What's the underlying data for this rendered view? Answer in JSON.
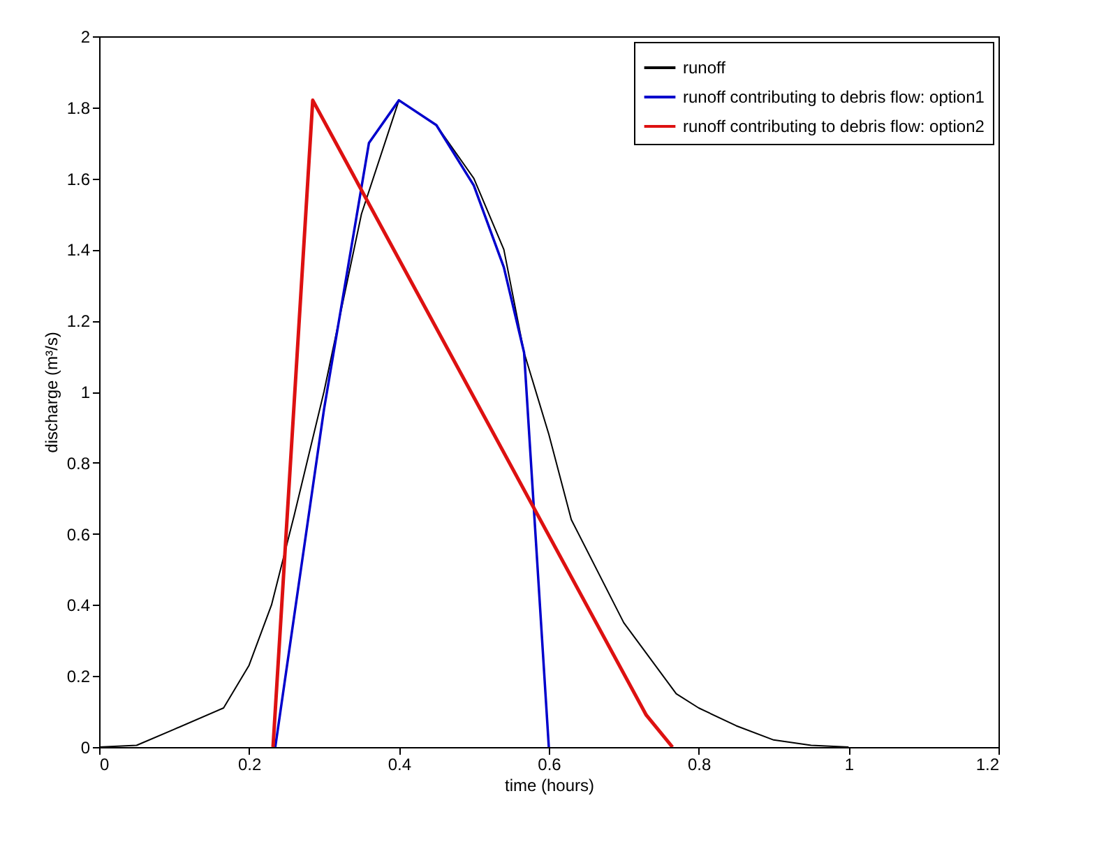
{
  "chart_data": {
    "type": "line",
    "xlabel": "time (hours)",
    "ylabel": "discharge (m³/s)",
    "xlim": [
      0,
      1.2
    ],
    "xticks": [
      0,
      0.2,
      0.4,
      0.6,
      0.8,
      1,
      1.2
    ],
    "ylim": [
      0,
      2
    ],
    "yticks": [
      0,
      0.2,
      0.4,
      0.6,
      0.8,
      1,
      1.2,
      1.4,
      1.6,
      1.8,
      2
    ],
    "grid": false,
    "legend": "top right",
    "marker": "none",
    "line_style": "solid",
    "series": [
      {
        "name": "runoff",
        "color": "#000000",
        "x": [
          0,
          0.05,
          0.1,
          0.166,
          0.2,
          0.23,
          0.26,
          0.3,
          0.35,
          0.4,
          0.45,
          0.5,
          0.54,
          0.567,
          0.6,
          0.63,
          0.7,
          0.77,
          0.8,
          0.85,
          0.9,
          0.95,
          1.0
        ],
        "values": [
          0,
          0.005,
          0.05,
          0.11,
          0.23,
          0.4,
          0.65,
          1.0,
          1.5,
          1.82,
          1.75,
          1.6,
          1.4,
          1.11,
          0.88,
          0.64,
          0.35,
          0.15,
          0.11,
          0.06,
          0.02,
          0.005,
          0
        ]
      },
      {
        "name": "runoff contributing to debris flow: option1",
        "color": "#0000cc",
        "x": [
          0.235,
          0.3,
          0.36,
          0.4,
          0.45,
          0.5,
          0.54,
          0.567,
          0.6
        ],
        "values": [
          0,
          0.95,
          1.7,
          1.82,
          1.75,
          1.58,
          1.35,
          1.11,
          0
        ]
      },
      {
        "name": "runoff contributing to debris flow: option2",
        "color": "#dd1111",
        "x": [
          0.232,
          0.285,
          0.73,
          0.765
        ],
        "values": [
          0,
          1.82,
          0.09,
          0
        ]
      }
    ]
  }
}
